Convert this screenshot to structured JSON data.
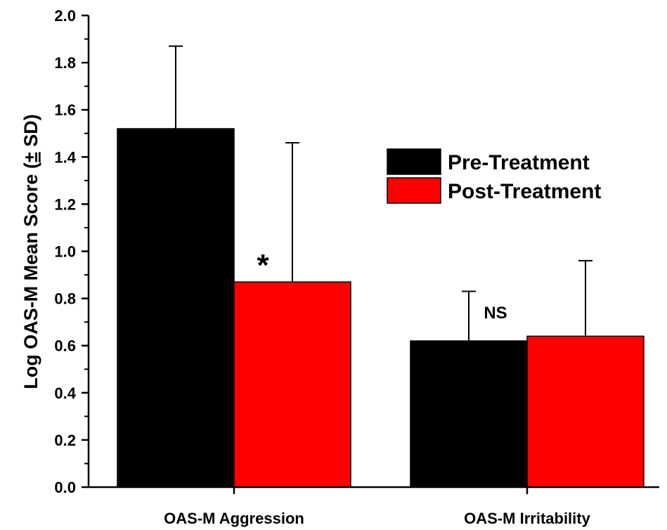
{
  "chart_data": {
    "type": "bar",
    "title": "",
    "xlabel": "",
    "ylabel_main": "Log OAS-M Mean Score (",
    "ylabel_pm": "±",
    "ylabel_end": " SD)",
    "categories": [
      "OAS-M Aggression",
      "OAS-M Irritability"
    ],
    "series": [
      {
        "name": "Pre-Treatment",
        "color": "#000000",
        "values": [
          1.52,
          0.62
        ],
        "sd": [
          0.35,
          0.21
        ]
      },
      {
        "name": "Post-Treatment",
        "color": "#ff0000",
        "values": [
          0.87,
          0.64
        ],
        "sd": [
          0.59,
          0.32
        ]
      }
    ],
    "annotations": [
      "*",
      "NS"
    ],
    "ylim": [
      0,
      2.0
    ],
    "yticks": [
      "0.0",
      "0.2",
      "0.4",
      "0.6",
      "0.8",
      "1.0",
      "1.2",
      "1.4",
      "1.6",
      "1.8",
      "2.0"
    ],
    "legend_position": "top-right",
    "grid": false
  }
}
